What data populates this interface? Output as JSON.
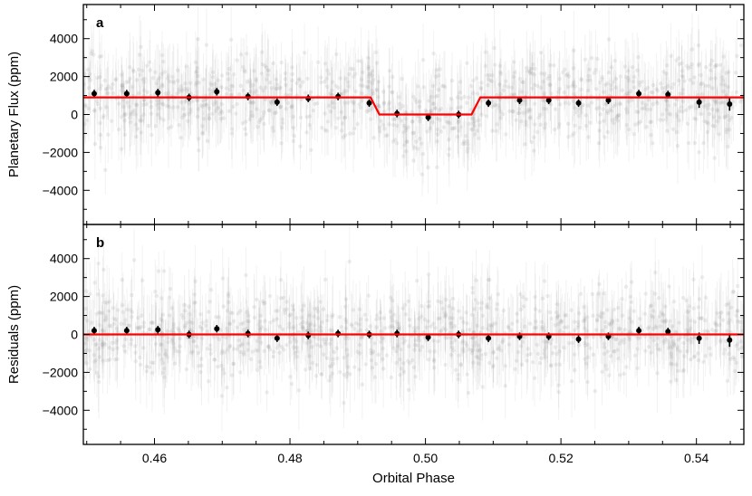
{
  "chart_data": [
    {
      "panel_label": "a",
      "type": "scatter",
      "ylabel": "Planetary Flux (ppm)",
      "xlim": [
        0.4495,
        0.547
      ],
      "ylim": [
        -5800,
        5800
      ],
      "yticks": [
        -4000,
        -2000,
        0,
        2000,
        4000
      ],
      "ytick_labels": [
        "−4000",
        "−2000",
        "0",
        "2000",
        "4000"
      ],
      "grid": false,
      "colors": {
        "binned": "#000000",
        "model": "#ff0000",
        "raw": "#9a9a9a"
      },
      "series": [
        {
          "kind": "binned",
          "x": [
            0.4511,
            0.4559,
            0.4605,
            0.4651,
            0.4692,
            0.4738,
            0.4781,
            0.4827,
            0.4871,
            0.4917,
            0.4958,
            0.5004,
            0.5049,
            0.5093,
            0.5139,
            0.5182,
            0.5226,
            0.527,
            0.5315,
            0.5358,
            0.5404,
            0.5449
          ],
          "y": [
            1100,
            1100,
            1150,
            900,
            1200,
            950,
            650,
            850,
            950,
            600,
            50,
            -150,
            0,
            600,
            750,
            750,
            600,
            750,
            1100,
            1050,
            650,
            550
          ],
          "yerr": [
            200,
            200,
            200,
            200,
            200,
            200,
            200,
            200,
            200,
            200,
            200,
            200,
            200,
            200,
            200,
            200,
            200,
            200,
            200,
            200,
            300,
            350
          ]
        },
        {
          "kind": "model",
          "x": [
            0.4495,
            0.4919,
            0.4932,
            0.5068,
            0.5081,
            0.547
          ],
          "y": [
            900,
            900,
            0,
            0,
            900,
            900
          ]
        }
      ]
    },
    {
      "panel_label": "b",
      "type": "scatter",
      "ylabel": "Residuals (ppm)",
      "xlabel": "Orbital Phase",
      "xlim": [
        0.4495,
        0.547
      ],
      "ylim": [
        -5800,
        5800
      ],
      "xticks": [
        0.46,
        0.48,
        0.5,
        0.52,
        0.54
      ],
      "xtick_labels": [
        "0.46",
        "0.48",
        "0.50",
        "0.52",
        "0.54"
      ],
      "yticks": [
        -4000,
        -2000,
        0,
        2000,
        4000
      ],
      "ytick_labels": [
        "−4000",
        "−2000",
        "0",
        "2000",
        "4000"
      ],
      "grid": false,
      "colors": {
        "binned": "#000000",
        "model": "#ff0000",
        "raw": "#9a9a9a"
      },
      "series": [
        {
          "kind": "binned",
          "x": [
            0.4511,
            0.4559,
            0.4605,
            0.4651,
            0.4692,
            0.4738,
            0.4781,
            0.4827,
            0.4871,
            0.4917,
            0.4958,
            0.5004,
            0.5049,
            0.5093,
            0.5139,
            0.5182,
            0.5226,
            0.527,
            0.5315,
            0.5358,
            0.5404,
            0.5449
          ],
          "y": [
            200,
            200,
            250,
            0,
            300,
            50,
            -200,
            -50,
            50,
            0,
            50,
            -150,
            0,
            -200,
            -100,
            -100,
            -250,
            -100,
            200,
            150,
            -200,
            -300
          ],
          "yerr": [
            200,
            200,
            200,
            200,
            200,
            200,
            200,
            200,
            200,
            200,
            200,
            200,
            200,
            200,
            200,
            200,
            200,
            200,
            200,
            200,
            300,
            350
          ]
        },
        {
          "kind": "model",
          "x": [
            0.4495,
            0.547
          ],
          "y": [
            0,
            0
          ]
        }
      ]
    }
  ]
}
